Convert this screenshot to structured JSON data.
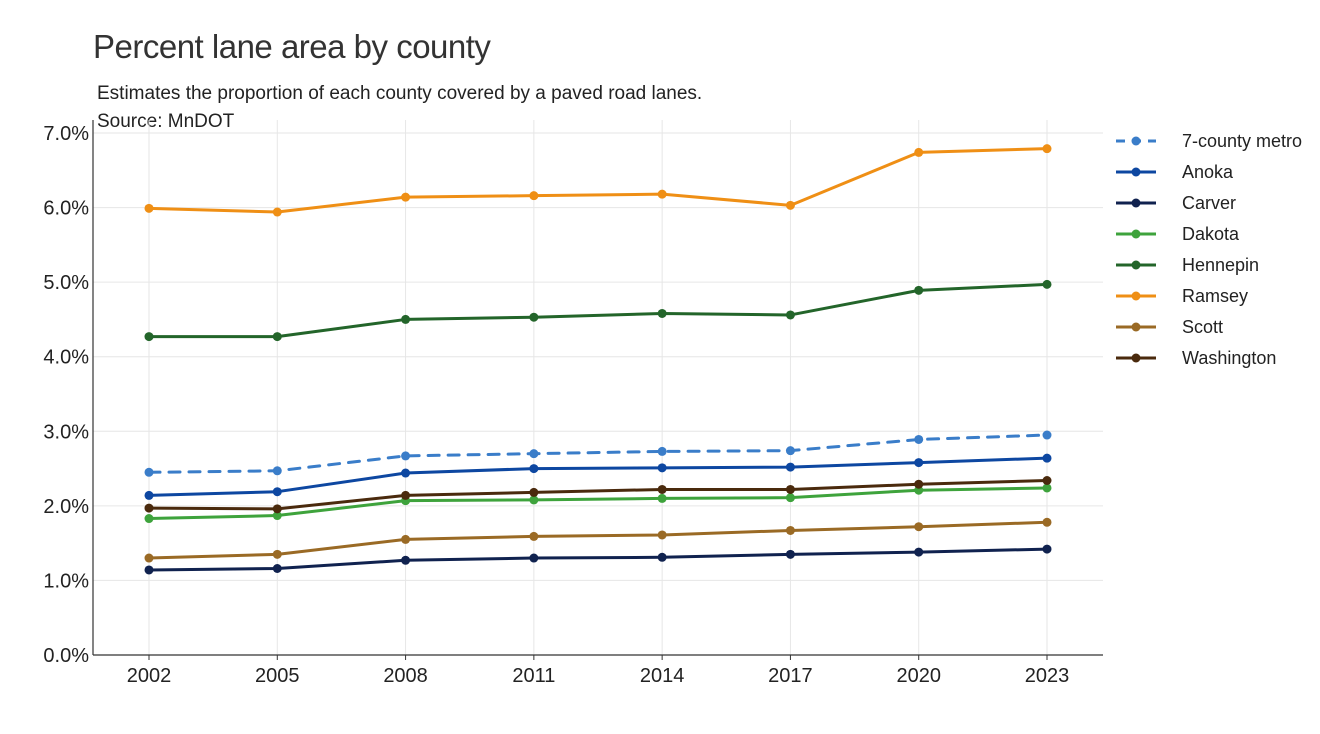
{
  "chart_data": {
    "type": "line",
    "title": "Percent lane area by county",
    "subtitle_lines": [
      "Estimates the proportion of each county covered by a paved road lanes.",
      "Source: MnDOT"
    ],
    "xlabel": "",
    "ylabel": "",
    "x": [
      2002,
      2005,
      2008,
      2011,
      2014,
      2017,
      2020,
      2023
    ],
    "x_tick_labels": [
      "2002",
      "2005",
      "2008",
      "2011",
      "2014",
      "2017",
      "2020",
      "2023"
    ],
    "ylim": [
      0,
      7
    ],
    "y_ticks": [
      0,
      1,
      2,
      3,
      4,
      5,
      6,
      7
    ],
    "y_tick_labels": [
      "0.0%",
      "1.0%",
      "2.0%",
      "3.0%",
      "4.0%",
      "5.0%",
      "6.0%",
      "7.0%"
    ],
    "grid": true,
    "legend_position": "right",
    "series": [
      {
        "name": "7-county metro",
        "color": "#3a7dc9",
        "dashed": true,
        "values": [
          2.45,
          2.47,
          2.67,
          2.7,
          2.73,
          2.74,
          2.89,
          2.95
        ]
      },
      {
        "name": "Anoka",
        "color": "#0d47a1",
        "dashed": false,
        "values": [
          2.14,
          2.19,
          2.44,
          2.5,
          2.51,
          2.52,
          2.58,
          2.64
        ]
      },
      {
        "name": "Carver",
        "color": "#10224f",
        "dashed": false,
        "values": [
          1.14,
          1.16,
          1.27,
          1.3,
          1.31,
          1.35,
          1.38,
          1.42
        ]
      },
      {
        "name": "Dakota",
        "color": "#3ea33c",
        "dashed": false,
        "values": [
          1.83,
          1.87,
          2.07,
          2.08,
          2.1,
          2.11,
          2.21,
          2.24
        ]
      },
      {
        "name": "Hennepin",
        "color": "#23652a",
        "dashed": false,
        "values": [
          4.27,
          4.27,
          4.5,
          4.53,
          4.58,
          4.56,
          4.89,
          4.97
        ]
      },
      {
        "name": "Ramsey",
        "color": "#ef8f15",
        "dashed": false,
        "values": [
          5.99,
          5.94,
          6.14,
          6.16,
          6.18,
          6.03,
          6.74,
          6.79
        ]
      },
      {
        "name": "Scott",
        "color": "#9a6a25",
        "dashed": false,
        "values": [
          1.3,
          1.35,
          1.55,
          1.59,
          1.61,
          1.67,
          1.72,
          1.78
        ]
      },
      {
        "name": "Washington",
        "color": "#4a2a0d",
        "dashed": false,
        "values": [
          1.97,
          1.96,
          2.14,
          2.18,
          2.22,
          2.22,
          2.29,
          2.34
        ]
      }
    ]
  }
}
